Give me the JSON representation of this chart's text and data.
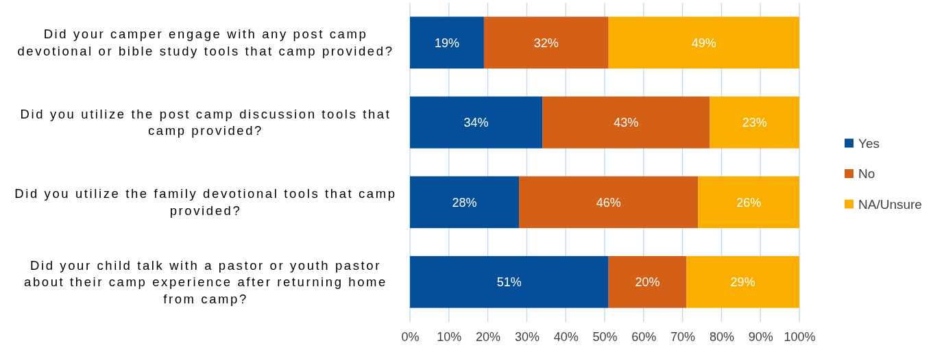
{
  "chart_data": {
    "type": "bar",
    "orientation": "horizontal",
    "stacked": true,
    "categories": [
      "Did your camper engage with any post camp devotional or bible study tools that camp provided?",
      "Did you utilize the post camp discussion tools that camp provided?",
      "Did you utilize the family devotional tools that camp provided?",
      "Did your child talk with a pastor or youth pastor about their camp experience after returning home from camp?"
    ],
    "series": [
      {
        "name": "Yes",
        "color": "#044e9a",
        "values": [
          19,
          34,
          28,
          51
        ],
        "value_labels": [
          "19%",
          "34%",
          "28%",
          "51%"
        ]
      },
      {
        "name": "No",
        "color": "#d45f17",
        "values": [
          32,
          43,
          46,
          20
        ],
        "value_labels": [
          "32%",
          "43%",
          "46%",
          "20%"
        ]
      },
      {
        "name": "NA/Unsure",
        "color": "#f9ae00",
        "values": [
          49,
          23,
          26,
          29
        ],
        "value_labels": [
          "49%",
          "23%",
          "26%",
          "29%"
        ]
      }
    ],
    "xlim": [
      0,
      100
    ],
    "xticks": [
      {
        "value": 0,
        "label": "0%"
      },
      {
        "value": 10,
        "label": "10%"
      },
      {
        "value": 20,
        "label": "20%"
      },
      {
        "value": 30,
        "label": "30%"
      },
      {
        "value": 40,
        "label": "40%"
      },
      {
        "value": 50,
        "label": "50%"
      },
      {
        "value": 60,
        "label": "60%"
      },
      {
        "value": 70,
        "label": "70%"
      },
      {
        "value": 80,
        "label": "80%"
      },
      {
        "value": 90,
        "label": "90%"
      },
      {
        "value": 100,
        "label": "100%"
      }
    ],
    "grid": "x",
    "legend": "right"
  }
}
